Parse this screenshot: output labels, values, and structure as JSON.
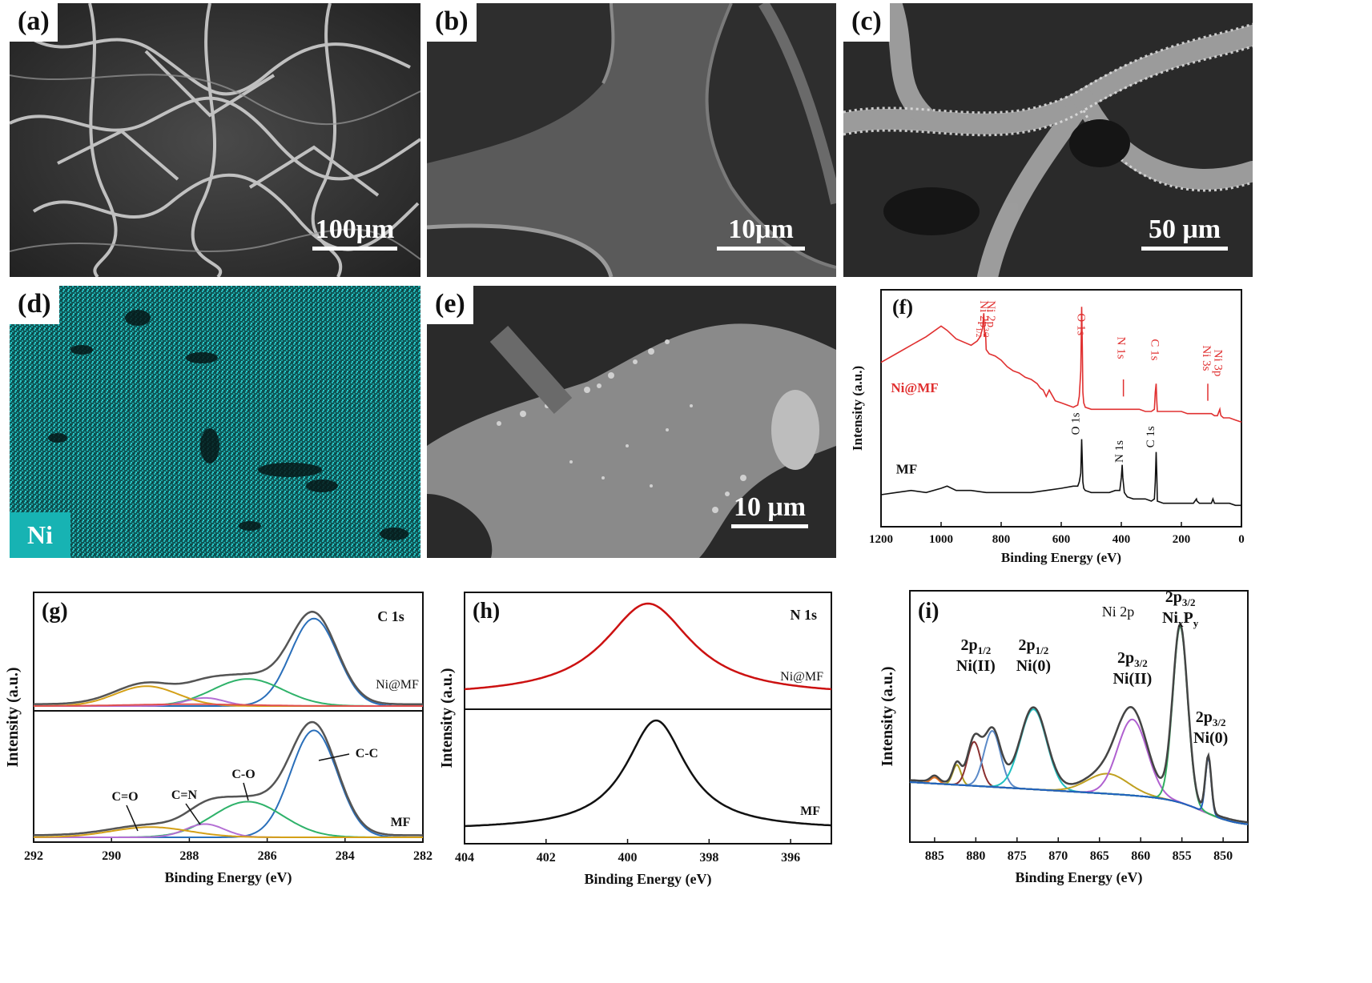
{
  "panels": {
    "a": {
      "label": "(a)",
      "scale_text": "100μm"
    },
    "b": {
      "label": "(b)",
      "scale_text": "10μm"
    },
    "c": {
      "label": "(c)",
      "scale_text": "50 μm"
    },
    "d": {
      "label": "(d)",
      "element": "Ni"
    },
    "e": {
      "label": "(e)",
      "scale_text": "10 μm"
    }
  },
  "colors": {
    "ni_map": "#1aa7a7",
    "red": "#e03030",
    "black": "#111111"
  },
  "chart_data": [
    {
      "id": "f",
      "type": "line",
      "panel_label": "(f)",
      "xlabel": "Binding Energy (eV)",
      "ylabel": "Intensity (a.u.)",
      "xlim": [
        1200,
        0
      ],
      "x_reversed": true,
      "xticks": [
        1200,
        1000,
        800,
        600,
        400,
        200,
        0
      ],
      "series": [
        {
          "name": "Ni@MF",
          "color": "#e03030",
          "x": [
            1200,
            1150,
            1100,
            1050,
            1000,
            980,
            950,
            900,
            880,
            870,
            862,
            858,
            855,
            852,
            850,
            840,
            820,
            800,
            780,
            760,
            740,
            720,
            700,
            680,
            670,
            660,
            650,
            640,
            620,
            600,
            580,
            560,
            545,
            540,
            535,
            532,
            530,
            528,
            525,
            520,
            500,
            480,
            460,
            440,
            420,
            405,
            400,
            395,
            380,
            360,
            340,
            320,
            300,
            290,
            287,
            284,
            282,
            280,
            260,
            240,
            220,
            200,
            180,
            160,
            140,
            120,
            112,
            110,
            108,
            100,
            90,
            80,
            72,
            70,
            68,
            60,
            40,
            20,
            0
          ],
          "y": [
            74,
            78,
            82,
            86,
            91,
            89,
            85,
            82,
            84,
            86,
            90,
            97,
            86,
            88,
            80,
            78,
            77,
            75,
            72,
            70,
            69,
            67,
            66,
            64,
            62,
            61,
            58,
            61,
            56,
            55,
            54,
            53,
            54,
            58,
            70,
            100,
            82,
            60,
            55,
            53,
            52,
            52,
            52,
            52,
            52,
            52,
            52,
            52,
            52,
            52,
            52,
            51,
            51,
            52,
            60,
            64,
            56,
            51,
            51,
            51,
            51,
            51,
            50,
            50,
            50,
            50,
            50,
            50,
            50,
            50,
            49,
            49,
            52,
            50,
            49,
            48,
            48,
            47,
            46
          ]
        },
        {
          "name": "MF",
          "color": "#111111",
          "x": [
            1200,
            1150,
            1100,
            1050,
            1000,
            980,
            950,
            900,
            850,
            800,
            750,
            700,
            650,
            600,
            560,
            545,
            540,
            535,
            532,
            530,
            528,
            525,
            520,
            500,
            480,
            460,
            440,
            420,
            405,
            400,
            397,
            395,
            390,
            380,
            360,
            340,
            320,
            300,
            290,
            287,
            284,
            282,
            280,
            260,
            240,
            220,
            200,
            180,
            160,
            150,
            148,
            140,
            120,
            100,
            95,
            90,
            80,
            60,
            40,
            20,
            0
          ],
          "y": [
            12,
            13,
            14,
            13,
            15,
            16,
            14,
            14,
            13,
            13,
            13,
            13,
            14,
            15,
            16,
            16,
            18,
            22,
            38,
            28,
            18,
            15,
            14,
            13,
            13,
            13,
            13,
            14,
            14,
            20,
            26,
            20,
            13,
            11,
            10,
            10,
            10,
            9,
            10,
            18,
            32,
            22,
            9,
            8,
            8,
            8,
            8,
            8,
            8,
            10,
            9,
            8,
            8,
            8,
            10,
            8,
            8,
            8,
            8,
            7,
            7
          ]
        }
      ],
      "annotations_nimf": [
        "Ni 2p1/2",
        "Ni 2p3/2",
        "O 1s",
        "N 1s",
        "C 1s",
        "Ni 3s",
        "Ni 3p"
      ],
      "annotations_mf": [
        "O 1s",
        "N 1s",
        "C 1s"
      ]
    },
    {
      "id": "g",
      "type": "line",
      "panel_label": "(g)",
      "title": "C 1s",
      "xlabel": "Binding Energy (eV)",
      "ylabel": "Intensity (a.u.)",
      "xlim": [
        292,
        282
      ],
      "x_reversed": true,
      "xticks": [
        292,
        290,
        288,
        286,
        284,
        282
      ],
      "subplots": [
        {
          "name": "Ni@MF",
          "envelope_color": "#555555",
          "peaks": [
            {
              "center": 284.8,
              "amp": 0.97,
              "sigma": 0.6,
              "color": "#2a6fba"
            },
            {
              "center": 286.5,
              "amp": 0.3,
              "sigma": 0.9,
              "color": "#2fb26a"
            },
            {
              "center": 287.6,
              "amp": 0.09,
              "sigma": 0.5,
              "color": "#b46fd4"
            },
            {
              "center": 289.1,
              "amp": 0.22,
              "sigma": 0.8,
              "color": "#d4a017"
            },
            {
              "center": 288.0,
              "amp": 0.02,
              "sigma": 1.5,
              "color": "#e05050"
            }
          ]
        },
        {
          "name": "MF",
          "envelope_color": "#555555",
          "peaks": [
            {
              "center": 284.8,
              "amp": 1.05,
              "sigma": 0.6,
              "color": "#2a6fba"
            },
            {
              "center": 286.5,
              "amp": 0.35,
              "sigma": 0.9,
              "color": "#2fb26a"
            },
            {
              "center": 287.6,
              "amp": 0.13,
              "sigma": 0.5,
              "color": "#b46fd4"
            },
            {
              "center": 289.0,
              "amp": 0.1,
              "sigma": 1.0,
              "color": "#d4a017"
            }
          ]
        }
      ],
      "annotations": [
        "C-C",
        "C-O",
        "C=N",
        "C=O"
      ]
    },
    {
      "id": "h",
      "type": "line",
      "panel_label": "(h)",
      "title": "N 1s",
      "xlabel": "Binding Energy (eV)",
      "ylabel": "Intensity (a.u.)",
      "xlim": [
        404,
        395
      ],
      "x_reversed": true,
      "xticks": [
        404,
        402,
        400,
        398,
        396
      ],
      "subplots": [
        {
          "name": "Ni@MF",
          "color": "#cc1111",
          "center": 399.5,
          "width": 1.3,
          "baseline": 0.05
        },
        {
          "name": "MF",
          "color": "#111111",
          "center": 399.3,
          "width": 0.9,
          "baseline": 0.05
        }
      ]
    },
    {
      "id": "i",
      "type": "line",
      "panel_label": "(i)",
      "title": "Ni 2p",
      "xlabel": "Binding Energy (eV)",
      "ylabel": "Intensity (a.u.)",
      "xlim": [
        888,
        847
      ],
      "x_reversed": true,
      "xticks": [
        885,
        880,
        875,
        870,
        865,
        860,
        855,
        850
      ],
      "peaks": [
        {
          "center": 885.0,
          "amp": 0.03,
          "sigma": 0.5,
          "color": "#e07020"
        },
        {
          "center": 882.3,
          "amp": 0.1,
          "sigma": 0.5,
          "color": "#b0a020"
        },
        {
          "center": 880.2,
          "amp": 0.22,
          "sigma": 0.8,
          "color": "#8b3030"
        },
        {
          "center": 878.0,
          "amp": 0.28,
          "sigma": 1.0,
          "color": "#5b8ac8"
        },
        {
          "center": 873.0,
          "amp": 0.4,
          "sigma": 1.6,
          "color": "#20c0c0"
        },
        {
          "center": 864.0,
          "amp": 0.1,
          "sigma": 2.5,
          "color": "#c0a020"
        },
        {
          "center": 861.0,
          "amp": 0.38,
          "sigma": 1.8,
          "color": "#b060d0"
        },
        {
          "center": 855.2,
          "amp": 0.88,
          "sigma": 0.9,
          "color": "#30b060"
        },
        {
          "center": 851.8,
          "amp": 0.28,
          "sigma": 0.35,
          "color": "#2060c0"
        }
      ],
      "annotations": [
        {
          "top": "2p1/2",
          "bottom": "Ni(II)"
        },
        {
          "top": "2p1/2",
          "bottom": "Ni(0)"
        },
        {
          "top": "2p3/2",
          "bottom": "Ni(II)"
        },
        {
          "top": "2p3/2",
          "bottom": "NixPy"
        },
        {
          "top": "2p3/2",
          "bottom": "Ni(0)"
        }
      ]
    }
  ]
}
